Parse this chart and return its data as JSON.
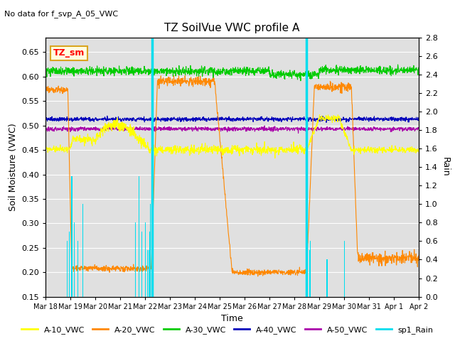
{
  "title": "TZ SoilVue VWC profile A",
  "no_data_text": "No data for f_svp_A_05_VWC",
  "xlabel": "Time",
  "ylabel": "Soil Moisture (VWC)",
  "ylabel_right": "Rain",
  "box_label": "TZ_sm",
  "ylim": [
    0.15,
    0.68
  ],
  "ylim_right": [
    0.0,
    2.8
  ],
  "background_color": "#e0e0e0",
  "fig_color": "#ffffff",
  "series": {
    "A10": {
      "color": "#ffff00",
      "label": "A-10_VWC"
    },
    "A20": {
      "color": "#ff8800",
      "label": "A-20_VWC"
    },
    "A30": {
      "color": "#00cc00",
      "label": "A-30_VWC"
    },
    "A40": {
      "color": "#0000bb",
      "label": "A-40_VWC"
    },
    "A50": {
      "color": "#aa00aa",
      "label": "A-50_VWC"
    },
    "Rain": {
      "color": "#00ddee",
      "label": "sp1_Rain"
    }
  },
  "x_tick_labels": [
    "Mar 18",
    "Mar 19",
    "Mar 20",
    "Mar 21",
    "Mar 22",
    "Mar 23",
    "Mar 24",
    "Mar 25",
    "Mar 26",
    "Mar 27",
    "Mar 28",
    "Mar 29",
    "Mar 30",
    "Mar 31",
    "Apr 1",
    "Apr 2"
  ],
  "yticks_left": [
    0.15,
    0.2,
    0.25,
    0.3,
    0.35,
    0.4,
    0.45,
    0.5,
    0.55,
    0.6,
    0.65
  ],
  "yticks_right": [
    0.0,
    0.2,
    0.4,
    0.6,
    0.8,
    1.0,
    1.2,
    1.4,
    1.6,
    1.8,
    2.0,
    2.2,
    2.4,
    2.6,
    2.8
  ],
  "n_days": 15
}
